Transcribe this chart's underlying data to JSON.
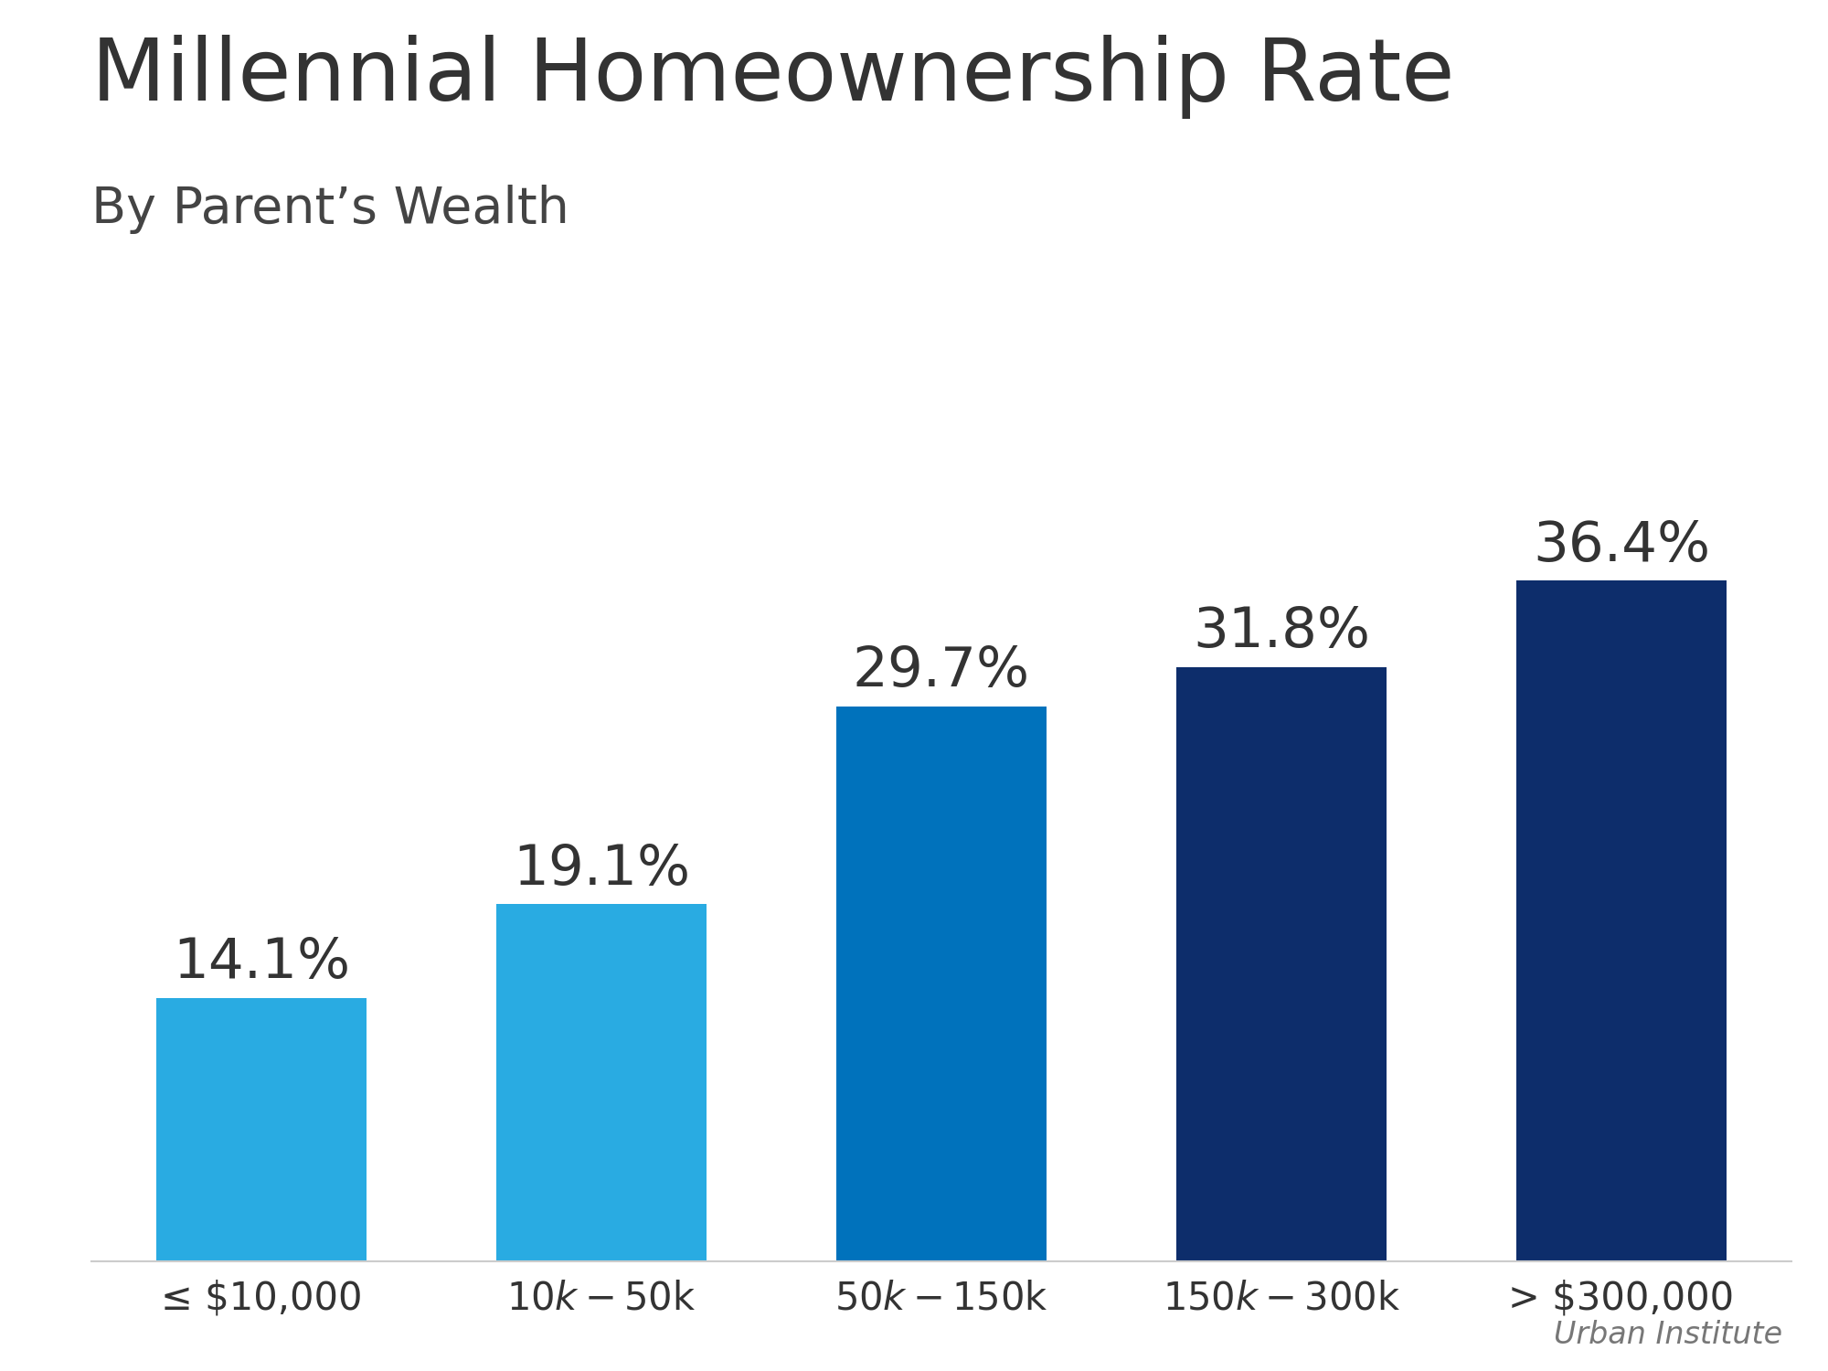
{
  "title": "Millennial Homeownership Rate",
  "subtitle": "By Parent’s Wealth",
  "categories": [
    "≤ $10,000",
    "$10k - $50k",
    "$50k - $150k",
    "$150k - $300k",
    "> $300,000"
  ],
  "values": [
    14.1,
    19.1,
    29.7,
    31.8,
    36.4
  ],
  "labels": [
    "14.1%",
    "19.1%",
    "29.7%",
    "31.8%",
    "36.4%"
  ],
  "bar_colors": [
    "#29ABE2",
    "#29ABE2",
    "#0072BC",
    "#0D2D6B",
    "#0D2D6B"
  ],
  "background_color": "#ffffff",
  "title_fontsize": 68,
  "subtitle_fontsize": 40,
  "label_fontsize": 44,
  "tick_fontsize": 30,
  "source_text": "Urban Institute",
  "source_fontsize": 24,
  "ylim": [
    0,
    44
  ],
  "bar_width": 0.62,
  "title_color": "#333333",
  "subtitle_color": "#444444",
  "label_color": "#333333",
  "tick_color": "#333333",
  "spine_color": "#cccccc"
}
